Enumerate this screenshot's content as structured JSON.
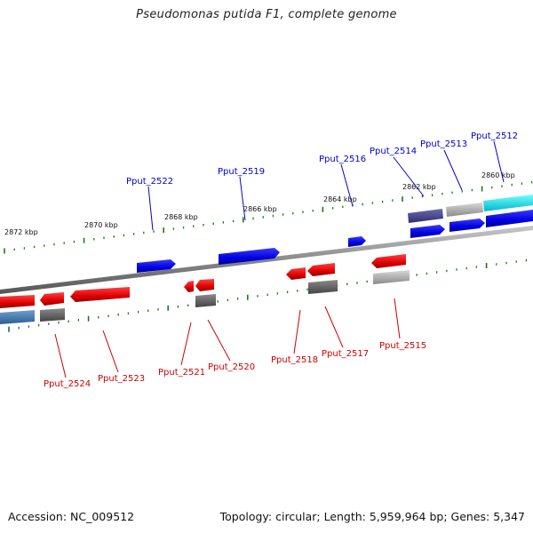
{
  "title": "Pseudomonas putida F1, complete genome",
  "footer": {
    "accession": "Accession: NC_009512",
    "summary": "Topology: circular; Length: 5,959,964 bp; Genes: 5,347"
  },
  "kbp_labels": [
    "2872 kbp",
    "2870 kbp",
    "2868 kbp",
    "2866 kbp",
    "2864 kbp",
    "2862 kbp",
    "2860 kbp"
  ],
  "top_gene_labels": [
    "Pput_2522",
    "Pput_2519",
    "Pput_2516",
    "Pput_2514",
    "Pput_2513",
    "Pput_2512"
  ],
  "bottom_gene_labels": [
    "Pput_2524",
    "Pput_2523",
    "Pput_2521",
    "Pput_2520",
    "Pput_2518",
    "Pput_2517",
    "Pput_2515"
  ],
  "colors": {
    "forward": "#0000ee",
    "reverse": "#ee0000",
    "top_label": "#0000cc",
    "bottom_label": "#cc0000",
    "tick": "#1a7a1a",
    "backbone": "#777777",
    "cyan_gene": "#00e0e8",
    "steel_gene": "#4a7fb0",
    "navy_gene": "#4a4a8a",
    "grey_gene": "#9a9a9a",
    "dark_grey_gene": "#666666"
  }
}
